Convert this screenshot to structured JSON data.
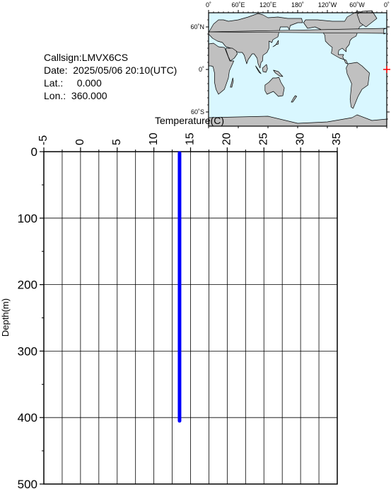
{
  "info": {
    "callsign_label": "Callsign:",
    "callsign": "LMVX6CS",
    "date_label": "Date:",
    "date": "2025/05/06 20:10(UTC)",
    "lat_label": "Lat.:",
    "lat": "0.000",
    "lon_label": "Lon.:",
    "lon": "360.000"
  },
  "map": {
    "lon_ticks": [
      "0˚",
      "60˚E",
      "120˚E",
      "180˚",
      "120˚W",
      "60˚W",
      "0˚"
    ],
    "lat_ticks": [
      "60˚N",
      "0˚",
      "60˚S"
    ],
    "marker": {
      "lat": 0.0,
      "lon": 360.0,
      "color": "#ff0000"
    },
    "ocean_color": "#d9f7ff",
    "land_color": "#c0c0c0"
  },
  "chart_data": {
    "type": "line",
    "xlabel": "Temperature(C)",
    "ylabel": "Depth(m)",
    "xlim": [
      -5,
      35
    ],
    "ylim": [
      0,
      500
    ],
    "x_ticks": [
      -5,
      0,
      5,
      10,
      15,
      20,
      25,
      30,
      35
    ],
    "y_ticks": [
      0,
      100,
      200,
      300,
      400,
      500
    ],
    "grid": true,
    "series": [
      {
        "color": "#0000ff",
        "points": [
          [
            13.5,
            2
          ],
          [
            13.5,
            50
          ],
          [
            13.5,
            100
          ],
          [
            13.5,
            150
          ],
          [
            13.5,
            200
          ],
          [
            13.5,
            250
          ],
          [
            13.5,
            300
          ],
          [
            13.5,
            350
          ],
          [
            13.5,
            405
          ]
        ]
      }
    ]
  }
}
